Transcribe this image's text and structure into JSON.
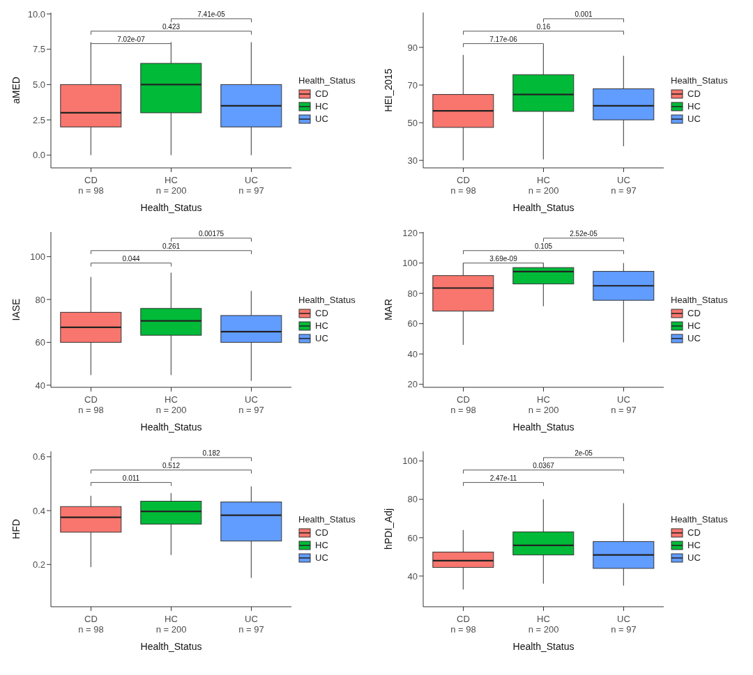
{
  "chart_data": [
    {
      "type": "box",
      "ylabel": "aMED",
      "xlabel": "Health_Status",
      "legend_title": "Health_Status",
      "legend": "right",
      "categories": [
        "CD\nn = 98",
        "HC\nn = 200",
        "UC\nn = 97"
      ],
      "ylim": [
        -0.9,
        10.1
      ],
      "yticks": [
        {
          "value": 0,
          "label": "0.0"
        },
        2.5,
        {
          "value": 5,
          "label": "5.0"
        },
        7.5,
        {
          "value": 10,
          "label": "10.0"
        }
      ],
      "annotations": [
        "7.02e-07",
        "0.423",
        "7.41e-05"
      ],
      "series": [
        {
          "name": "CD",
          "color": "#f8766d",
          "boxes": [
            {
              "low": 0,
              "q1": 2,
              "median": 3,
              "q3": 5,
              "high": 8
            },
            null,
            null
          ]
        },
        {
          "name": "HC",
          "color": "#00ba38",
          "boxes": [
            null,
            {
              "low": 0,
              "q1": 3,
              "median": 5,
              "q3": 6.5,
              "high": 8
            },
            null
          ]
        },
        {
          "name": "UC",
          "color": "#619cff",
          "boxes": [
            null,
            null,
            {
              "low": 0,
              "q1": 2,
              "median": 3.5,
              "q3": 5,
              "high": 8
            }
          ]
        }
      ]
    },
    {
      "type": "box",
      "ylabel": "HEI_2015",
      "xlabel": "Health_Status",
      "legend_title": "Health_Status",
      "legend": "right",
      "categories": [
        "CD\nn = 98",
        "HC\nn = 200",
        "UC\nn = 97"
      ],
      "ylim": [
        26,
        108.5
      ],
      "yticks": [
        30,
        50,
        70,
        90
      ],
      "annotations": [
        "7.17e-06",
        "0.16",
        "0.001"
      ],
      "series": [
        {
          "name": "CD",
          "color": "#f8766d",
          "boxes": [
            {
              "low": 30,
              "q1": 47.5,
              "median": 56.3,
              "q3": 65,
              "high": 86
            },
            null,
            null
          ]
        },
        {
          "name": "HC",
          "color": "#00ba38",
          "boxes": [
            null,
            {
              "low": 30.5,
              "q1": 56,
              "median": 65,
              "q3": 75.5,
              "high": 91
            },
            null
          ]
        },
        {
          "name": "UC",
          "color": "#619cff",
          "boxes": [
            null,
            null,
            {
              "low": 37.5,
              "q1": 51.5,
              "median": 59,
              "q3": 68,
              "high": 85.5
            }
          ]
        }
      ]
    },
    {
      "type": "box",
      "ylabel": "IASE",
      "xlabel": "Health_Status",
      "legend_title": "Health_Status",
      "legend": "right",
      "categories": [
        "CD\nn = 98",
        "HC\nn = 200",
        "UC\nn = 97"
      ],
      "ylim": [
        39,
        111.5
      ],
      "yticks": [
        40,
        60,
        80,
        100
      ],
      "annotations": [
        "0.044",
        "0.261",
        "0.00175"
      ],
      "series": [
        {
          "name": "CD",
          "color": "#f8766d",
          "boxes": [
            {
              "low": 44.7,
              "q1": 60,
              "median": 67,
              "q3": 74,
              "high": 90.5
            },
            null,
            null
          ]
        },
        {
          "name": "HC",
          "color": "#00ba38",
          "boxes": [
            null,
            {
              "low": 44.7,
              "q1": 63.3,
              "median": 70,
              "q3": 75.8,
              "high": 92.5
            },
            null
          ]
        },
        {
          "name": "UC",
          "color": "#619cff",
          "boxes": [
            null,
            null,
            {
              "low": 42,
              "q1": 60,
              "median": 65,
              "q3": 72.5,
              "high": 84
            }
          ]
        }
      ]
    },
    {
      "type": "box",
      "ylabel": "MAR",
      "xlabel": "Health_Status",
      "legend_title": "Health_Status",
      "legend": "right",
      "categories": [
        "CD\nn = 98",
        "HC\nn = 200",
        "UC\nn = 97"
      ],
      "ylim": [
        18,
        120.5
      ],
      "yticks": [
        20,
        40,
        60,
        80,
        100,
        120
      ],
      "annotations": [
        "3.69e-09",
        "0.105",
        "2.52e-05"
      ],
      "series": [
        {
          "name": "CD",
          "color": "#f8766d",
          "boxes": [
            {
              "low": 46,
              "q1": 68.3,
              "median": 83.5,
              "q3": 91.7,
              "high": 100
            },
            null,
            null
          ]
        },
        {
          "name": "HC",
          "color": "#00ba38",
          "boxes": [
            null,
            {
              "low": 71.5,
              "q1": 86.2,
              "median": 94.4,
              "q3": 97,
              "high": 100
            },
            null
          ]
        },
        {
          "name": "UC",
          "color": "#619cff",
          "boxes": [
            null,
            null,
            {
              "low": 47.7,
              "q1": 75.4,
              "median": 85,
              "q3": 94.5,
              "high": 100
            }
          ]
        }
      ]
    },
    {
      "type": "box",
      "ylabel": "HFD",
      "xlabel": "Health_Status",
      "legend_title": "Health_Status",
      "legend": "right",
      "categories": [
        "CD\nn = 98",
        "HC\nn = 200",
        "UC\nn = 97"
      ],
      "ylim": [
        0.043,
        0.62
      ],
      "yticks": [
        0.2,
        0.4,
        0.6
      ],
      "annotations": [
        "0.011",
        "0.512",
        "0.182"
      ],
      "series": [
        {
          "name": "CD",
          "color": "#f8766d",
          "boxes": [
            {
              "low": 0.19,
              "q1": 0.32,
              "median": 0.375,
              "q3": 0.415,
              "high": 0.455
            },
            null,
            null
          ]
        },
        {
          "name": "HC",
          "color": "#00ba38",
          "boxes": [
            null,
            {
              "low": 0.235,
              "q1": 0.35,
              "median": 0.397,
              "q3": 0.435,
              "high": 0.465
            },
            null
          ]
        },
        {
          "name": "UC",
          "color": "#619cff",
          "boxes": [
            null,
            null,
            {
              "low": 0.15,
              "q1": 0.287,
              "median": 0.383,
              "q3": 0.432,
              "high": 0.49
            }
          ]
        }
      ]
    },
    {
      "type": "box",
      "ylabel": "hPDI_Adj",
      "xlabel": "Health_Status",
      "legend_title": "Health_Status",
      "legend": "right",
      "categories": [
        "CD\nn = 98",
        "HC\nn = 200",
        "UC\nn = 97"
      ],
      "ylim": [
        24,
        105
      ],
      "yticks": [
        40,
        60,
        80,
        100
      ],
      "annotations": [
        "2.47e-11",
        "0.0367",
        "2e-05"
      ],
      "series": [
        {
          "name": "CD",
          "color": "#f8766d",
          "boxes": [
            {
              "low": 33,
              "q1": 44.5,
              "median": 48,
              "q3": 52.5,
              "high": 64
            },
            null,
            null
          ]
        },
        {
          "name": "HC",
          "color": "#00ba38",
          "boxes": [
            null,
            {
              "low": 36,
              "q1": 51,
              "median": 56,
              "q3": 63,
              "high": 80
            },
            null
          ]
        },
        {
          "name": "UC",
          "color": "#619cff",
          "boxes": [
            null,
            null,
            {
              "low": 35,
              "q1": 44,
              "median": 51,
              "q3": 58,
              "high": 78
            }
          ]
        }
      ]
    }
  ]
}
